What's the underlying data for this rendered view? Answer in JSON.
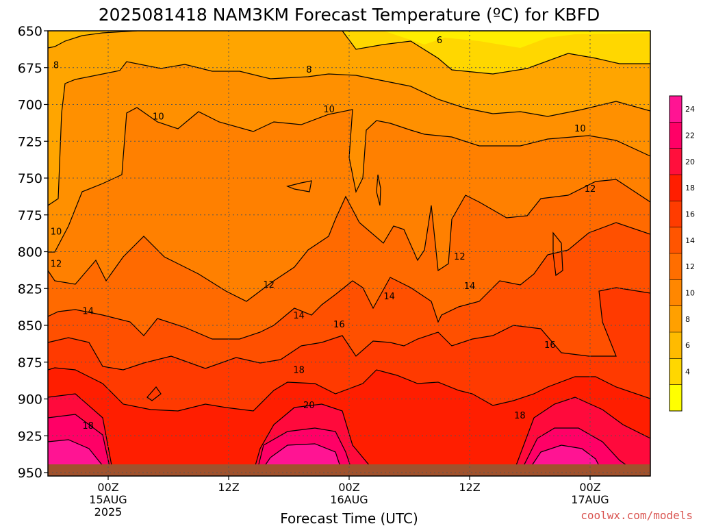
{
  "chart_data": {
    "type": "heatmap",
    "title": "2025081418 NAM3KM Forecast Temperature (ºC) for KBFD",
    "xlabel": "Forecast Time (UTC)",
    "ylabel": "",
    "y_axis": {
      "quantity": "pressure level (hPa)",
      "ticks": [
        "650",
        "675",
        "700",
        "725",
        "750",
        "775",
        "800",
        "825",
        "850",
        "875",
        "900",
        "925",
        "950"
      ],
      "range": [
        950,
        650
      ],
      "inverted": true,
      "grid": "dotted"
    },
    "x_axis": {
      "range": [
        "2025-08-14T18Z",
        "2025-08-17T06Z"
      ],
      "ticks": [
        {
          "time": "2025-08-15T00Z",
          "lines": [
            "00Z",
            "15AUG",
            "2025"
          ]
        },
        {
          "time": "2025-08-15T12Z",
          "lines": [
            "12Z"
          ]
        },
        {
          "time": "2025-08-16T00Z",
          "lines": [
            "00Z",
            "16AUG"
          ]
        },
        {
          "time": "2025-08-16T12Z",
          "lines": [
            "12Z"
          ]
        },
        {
          "time": "2025-08-17T00Z",
          "lines": [
            "00Z",
            "17AUG"
          ]
        }
      ],
      "grid": "dotted"
    },
    "fill_levels_c": [
      4,
      6,
      8,
      10,
      12,
      14,
      16,
      18,
      20,
      22,
      24
    ],
    "colorbar_ticks": [
      "24",
      "22",
      "20",
      "18",
      "16",
      "14",
      "12",
      "10",
      "8",
      "6",
      "4"
    ],
    "colorbar_colors": [
      "#ff1493",
      "#ff0066",
      "#ff0f3c",
      "#ff1e00",
      "#ff3c00",
      "#ff5500",
      "#ff6e00",
      "#ff8700",
      "#ffa000",
      "#ffbb00",
      "#ffd700",
      "#ffff00"
    ],
    "contour_labels": [
      {
        "text": "6",
        "time": "2025-08-16T09Z",
        "pressure": 656
      },
      {
        "text": "8",
        "time": "2025-08-14T18Z",
        "pressure": 673
      },
      {
        "text": "8",
        "time": "2025-08-15T20Z",
        "pressure": 676
      },
      {
        "text": "10",
        "time": "2025-08-15T05Z",
        "pressure": 708
      },
      {
        "text": "10",
        "time": "2025-08-15T22Z",
        "pressure": 703
      },
      {
        "text": "10",
        "time": "2025-08-16T23Z",
        "pressure": 716
      },
      {
        "text": "10",
        "time": "2025-08-14T18Z",
        "pressure": 786
      },
      {
        "text": "12",
        "time": "2025-08-14T18Z",
        "pressure": 808
      },
      {
        "text": "12",
        "time": "2025-08-15T16Z",
        "pressure": 822
      },
      {
        "text": "12",
        "time": "2025-08-16T11Z",
        "pressure": 803
      },
      {
        "text": "12",
        "time": "2025-08-17T00Z",
        "pressure": 757
      },
      {
        "text": "14",
        "time": "2025-08-14T22Z",
        "pressure": 840
      },
      {
        "text": "14",
        "time": "2025-08-15T19Z",
        "pressure": 843
      },
      {
        "text": "14",
        "time": "2025-08-16T04Z",
        "pressure": 830
      },
      {
        "text": "14",
        "time": "2025-08-16T12Z",
        "pressure": 823
      },
      {
        "text": "16",
        "time": "2025-08-15T23Z",
        "pressure": 849
      },
      {
        "text": "16",
        "time": "2025-08-16T20Z",
        "pressure": 863
      },
      {
        "text": "18",
        "time": "2025-08-14T22Z",
        "pressure": 918
      },
      {
        "text": "18",
        "time": "2025-08-15T19Z",
        "pressure": 880
      },
      {
        "text": "18",
        "time": "2025-08-16T17Z",
        "pressure": 911
      },
      {
        "text": "20",
        "time": "2025-08-15T20Z",
        "pressure": 904
      }
    ]
  },
  "credit": "coolwx.com/models"
}
